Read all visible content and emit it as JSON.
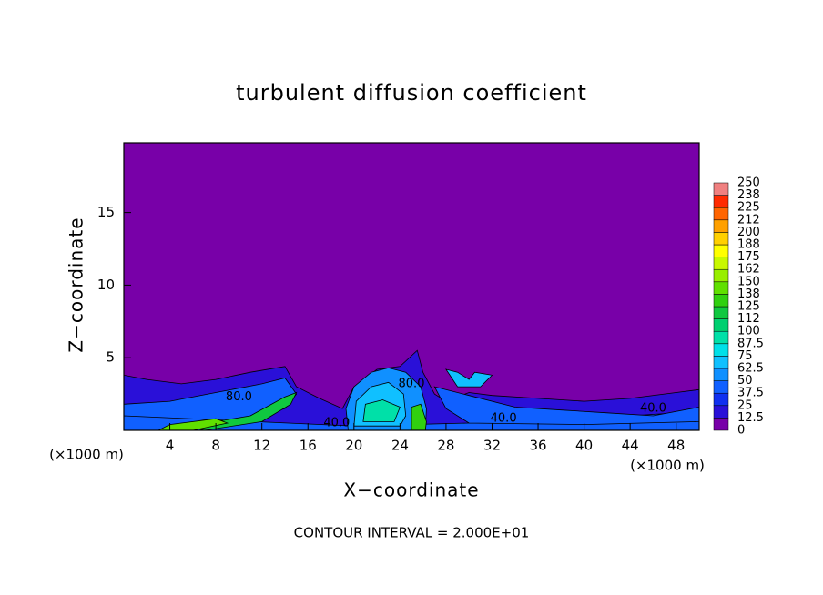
{
  "chart_data": {
    "type": "contour",
    "title": "turbulent diffusion coefficient",
    "x_label": "X−coordinate",
    "y_label": "Z−coordinate",
    "x_unit_labels": [
      "(×1000 m)",
      "(×1000 m)"
    ],
    "footnote": "CONTOUR INTERVAL = 2.000E+01",
    "xlim": [
      0,
      50
    ],
    "ylim": [
      0,
      19.8
    ],
    "xticks": [
      4,
      8,
      12,
      16,
      20,
      24,
      28,
      32,
      36,
      40,
      44,
      48
    ],
    "yticks": [
      5,
      10,
      15
    ],
    "background_level": 0,
    "colorbar": {
      "levels": [
        0,
        12.5,
        25,
        37.5,
        50,
        62.5,
        75,
        87.5,
        100,
        112,
        125,
        138,
        150,
        162,
        175,
        188,
        200,
        212,
        225,
        238,
        250
      ],
      "colors": [
        "#7800a8",
        "#2a10d8",
        "#1030f0",
        "#1060ff",
        "#1090ff",
        "#10c0ff",
        "#00e0e8",
        "#00e0a8",
        "#00d070",
        "#10c840",
        "#30d010",
        "#60e000",
        "#98ee00",
        "#c8f800",
        "#ffff00",
        "#ffd000",
        "#ffa000",
        "#ff6400",
        "#ff2a00",
        "#f08080"
      ]
    },
    "regions": [
      {
        "level": 12.5,
        "points": [
          [
            0,
            0
          ],
          [
            0,
            3.8
          ],
          [
            2,
            3.5
          ],
          [
            5,
            3.2
          ],
          [
            8,
            3.5
          ],
          [
            11,
            4
          ],
          [
            14,
            4.4
          ],
          [
            15,
            3
          ],
          [
            17,
            2.2
          ],
          [
            19,
            1.5
          ],
          [
            20,
            3
          ],
          [
            22,
            4.2
          ],
          [
            24,
            4.4
          ],
          [
            25.5,
            5.5
          ],
          [
            26,
            4
          ],
          [
            27,
            2.5
          ],
          [
            28,
            2
          ],
          [
            30,
            2.6
          ],
          [
            32,
            2.4
          ],
          [
            36,
            2.2
          ],
          [
            40,
            2
          ],
          [
            44,
            2.2
          ],
          [
            48,
            2.6
          ],
          [
            50,
            2.8
          ],
          [
            50,
            0
          ]
        ]
      },
      {
        "level": 37.5,
        "points": [
          [
            0,
            0.3
          ],
          [
            0,
            1.8
          ],
          [
            4,
            2
          ],
          [
            8,
            2.6
          ],
          [
            12,
            3.2
          ],
          [
            14,
            3.6
          ],
          [
            15,
            2.5
          ],
          [
            14,
            1.5
          ],
          [
            10,
            0.8
          ],
          [
            6,
            0.4
          ]
        ]
      },
      {
        "level": 37.5,
        "points": [
          [
            0,
            0
          ],
          [
            0,
            1
          ],
          [
            20,
            0.3
          ],
          [
            30,
            0.5
          ],
          [
            40,
            0.8
          ],
          [
            50,
            1.3
          ],
          [
            50,
            0
          ]
        ]
      },
      {
        "level": 37.5,
        "points": [
          [
            27,
            3
          ],
          [
            30,
            2.4
          ],
          [
            34,
            1.6
          ],
          [
            38,
            1.4
          ],
          [
            42,
            1.2
          ],
          [
            46,
            1
          ],
          [
            50,
            1.6
          ],
          [
            50,
            0.6
          ],
          [
            40,
            0.4
          ],
          [
            30,
            0.5
          ],
          [
            28,
            1.5
          ]
        ]
      },
      {
        "level": 62.5,
        "points": [
          [
            28,
            4.2
          ],
          [
            29,
            3
          ],
          [
            31,
            3
          ],
          [
            32,
            3.8
          ],
          [
            30.5,
            4
          ],
          [
            30,
            3.5
          ],
          [
            29,
            4
          ]
        ]
      },
      {
        "level": 50,
        "points": [
          [
            19.5,
            0
          ],
          [
            19.3,
            1.5
          ],
          [
            20,
            3
          ],
          [
            21.5,
            4
          ],
          [
            23,
            4.3
          ],
          [
            24.5,
            4
          ],
          [
            25.8,
            3
          ],
          [
            26.3,
            1.5
          ],
          [
            26.2,
            0
          ]
        ]
      },
      {
        "level": 62.5,
        "points": [
          [
            20,
            0.3
          ],
          [
            20.2,
            2
          ],
          [
            21.5,
            3
          ],
          [
            23,
            3.3
          ],
          [
            24.3,
            2.5
          ],
          [
            24.5,
            1
          ],
          [
            24,
            0.3
          ]
        ]
      },
      {
        "level": 87.5,
        "points": [
          [
            20.8,
            0.6
          ],
          [
            21,
            1.8
          ],
          [
            22.5,
            2.1
          ],
          [
            24,
            1.6
          ],
          [
            23.5,
            0.6
          ]
        ]
      },
      {
        "level": 125,
        "points": [
          [
            25,
            0
          ],
          [
            25,
            1.6
          ],
          [
            25.8,
            1.8
          ],
          [
            26.3,
            0.6
          ],
          [
            26.2,
            0
          ]
        ]
      },
      {
        "level": 112,
        "points": [
          [
            6,
            0.2
          ],
          [
            8,
            0.6
          ],
          [
            11,
            1
          ],
          [
            14,
            2.3
          ],
          [
            15,
            2.6
          ],
          [
            14.5,
            1.8
          ],
          [
            12,
            0.6
          ],
          [
            7,
            0
          ]
        ]
      },
      {
        "level": 138,
        "points": [
          [
            3,
            0
          ],
          [
            4,
            0.4
          ],
          [
            8,
            0.8
          ],
          [
            9,
            0.5
          ],
          [
            6,
            0
          ]
        ]
      }
    ],
    "contour_labels": [
      {
        "value": 40,
        "label": "40.0",
        "x": 33,
        "z": 0.8
      },
      {
        "value": 40,
        "label": "40.0",
        "x": 46,
        "z": 1.5
      },
      {
        "value": 40,
        "label": "40.0",
        "x": 18.5,
        "z": 0.5
      },
      {
        "value": 80,
        "label": "80.0",
        "x": 10,
        "z": 2.3
      },
      {
        "value": 80,
        "label": "80.0",
        "x": 25,
        "z": 3.2
      }
    ]
  }
}
